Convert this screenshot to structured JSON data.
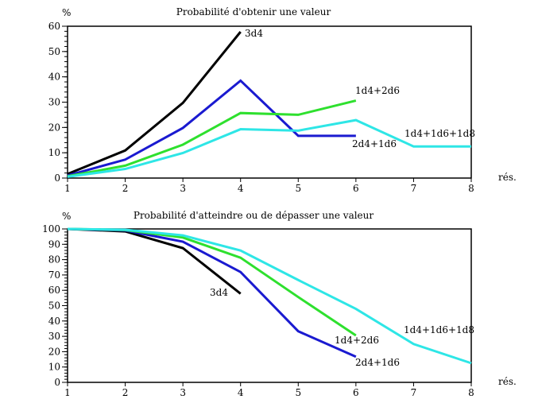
{
  "chart_data": [
    {
      "type": "line",
      "title": "Probabilité d'obtenir une valeur",
      "ylabel": "%",
      "xlabel": "rés.",
      "xlim": [
        1,
        8
      ],
      "ylim": [
        0,
        60
      ],
      "yticks": [
        0,
        10,
        20,
        30,
        40,
        50,
        60
      ],
      "xticks": [
        1,
        2,
        3,
        4,
        5,
        6,
        7,
        8
      ],
      "series": [
        {
          "name": "3d4",
          "color": "#000000",
          "x": [
            1,
            2,
            3,
            4
          ],
          "y": [
            1.6,
            10.9,
            29.7,
            57.8
          ]
        },
        {
          "name": "2d4+1d6",
          "color": "#1a1ad0",
          "x": [
            1,
            2,
            3,
            4,
            5,
            6
          ],
          "y": [
            1.0,
            7.3,
            19.8,
            38.5,
            16.7,
            16.7
          ]
        },
        {
          "name": "1d4+2d6",
          "color": "#2ee02e",
          "x": [
            1,
            2,
            3,
            4,
            5,
            6
          ],
          "y": [
            0.7,
            4.9,
            13.2,
            25.7,
            25.0,
            30.6
          ]
        },
        {
          "name": "1d4+1d6+1d8",
          "color": "#2ee6e6",
          "x": [
            1,
            2,
            3,
            4,
            5,
            6,
            7,
            8
          ],
          "y": [
            0.5,
            3.6,
            9.9,
            19.3,
            18.75,
            22.9,
            12.5,
            12.5
          ]
        }
      ]
    },
    {
      "type": "line",
      "title": "Probabilité d'atteindre ou de dépasser une valeur",
      "ylabel": "%",
      "xlabel": "rés.",
      "xlim": [
        1,
        8
      ],
      "ylim": [
        0,
        100
      ],
      "yticks": [
        0,
        10,
        20,
        30,
        40,
        50,
        60,
        70,
        80,
        90,
        100
      ],
      "xticks": [
        1,
        2,
        3,
        4,
        5,
        6,
        7,
        8
      ],
      "series": [
        {
          "name": "3d4",
          "color": "#000000",
          "x": [
            1,
            2,
            3,
            4
          ],
          "y": [
            100,
            98.4,
            87.5,
            57.8
          ]
        },
        {
          "name": "2d4+1d6",
          "color": "#1a1ad0",
          "x": [
            1,
            2,
            3,
            4,
            5,
            6
          ],
          "y": [
            100,
            99.0,
            91.7,
            71.9,
            33.3,
            16.7
          ]
        },
        {
          "name": "1d4+2d6",
          "color": "#2ee02e",
          "x": [
            1,
            2,
            3,
            4,
            5,
            6
          ],
          "y": [
            100,
            99.3,
            94.4,
            81.25,
            55.6,
            30.6
          ]
        },
        {
          "name": "1d4+1d6+1d8",
          "color": "#2ee6e6",
          "x": [
            1,
            2,
            3,
            4,
            5,
            6,
            7,
            8
          ],
          "y": [
            100,
            99.5,
            95.8,
            85.9,
            66.7,
            47.9,
            25.0,
            12.5
          ]
        }
      ]
    }
  ]
}
